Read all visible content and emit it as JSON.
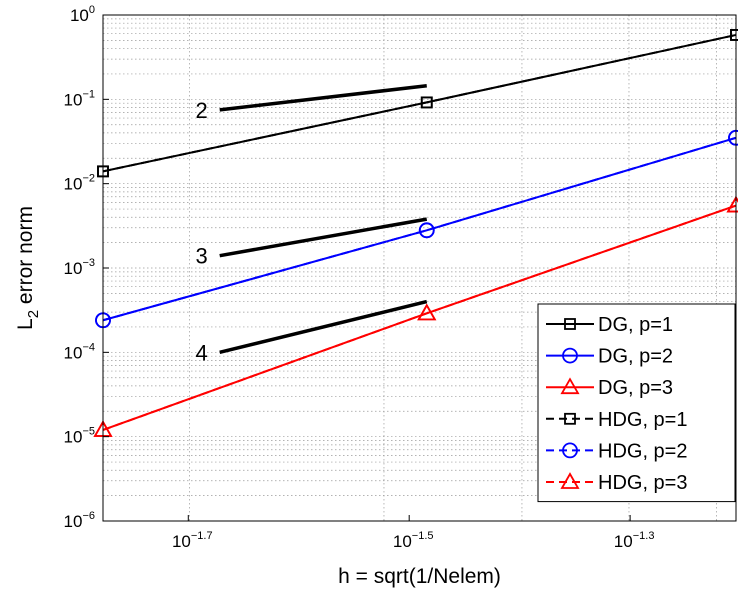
{
  "chart_data": {
    "type": "line",
    "xscale": "log",
    "yscale": "log",
    "xlim": [
      0.0167,
      0.0625
    ],
    "ylim": [
      1e-06,
      1
    ],
    "xlabel": "h = sqrt(1/Nelem)",
    "ylabel_main": "L",
    "ylabel_sub": "2",
    "ylabel_rest": " error norm",
    "grid": true,
    "legend_position": "lower-right",
    "xticks": [
      {
        "value": 0.01995,
        "base": "10",
        "exp": "−1.7"
      },
      {
        "value": 0.03162,
        "base": "10",
        "exp": "−1.5"
      },
      {
        "value": 0.05012,
        "base": "10",
        "exp": "−1.3"
      }
    ],
    "yticks": [
      {
        "value": 1e-06,
        "base": "10",
        "exp": "−6"
      },
      {
        "value": 1e-05,
        "base": "10",
        "exp": "−5"
      },
      {
        "value": 0.0001,
        "base": "10",
        "exp": "−4"
      },
      {
        "value": 0.001,
        "base": "10",
        "exp": "−3"
      },
      {
        "value": 0.01,
        "base": "10",
        "exp": "−2"
      },
      {
        "value": 0.1,
        "base": "10",
        "exp": "−1"
      },
      {
        "value": 1,
        "base": "10",
        "exp": "0"
      }
    ],
    "series": [
      {
        "name": "DG, p=1",
        "color": "#000000",
        "marker": "square",
        "dash": "solid",
        "x": [
          0.0167,
          0.0328,
          0.0625
        ],
        "y": [
          0.014,
          0.092,
          0.58
        ]
      },
      {
        "name": "DG, p=2",
        "color": "#0000ff",
        "marker": "circle",
        "dash": "solid",
        "x": [
          0.0167,
          0.0328,
          0.0625
        ],
        "y": [
          0.00024,
          0.0028,
          0.035
        ]
      },
      {
        "name": "DG, p=3",
        "color": "#ff0000",
        "marker": "triangle",
        "dash": "solid",
        "x": [
          0.0167,
          0.0328,
          0.0625
        ],
        "y": [
          1.2e-05,
          0.00029,
          0.0055
        ]
      },
      {
        "name": "HDG, p=1",
        "color": "#000000",
        "marker": "square",
        "dash": "dashed",
        "x": [
          0.0167,
          0.0328,
          0.0625
        ],
        "y": [
          0.014,
          0.092,
          0.58
        ]
      },
      {
        "name": "HDG, p=2",
        "color": "#0000ff",
        "marker": "circle",
        "dash": "dashed",
        "x": [
          0.0167,
          0.0328,
          0.0625
        ],
        "y": [
          0.00024,
          0.0028,
          0.035
        ]
      },
      {
        "name": "HDG, p=3",
        "color": "#ff0000",
        "marker": "triangle",
        "dash": "dashed",
        "x": [
          0.0167,
          0.0328,
          0.0625
        ],
        "y": [
          1.2e-05,
          0.00029,
          0.0055
        ]
      }
    ],
    "slope_annotations": [
      {
        "label": "2",
        "x": [
          0.0213,
          0.0328
        ],
        "y": [
          0.075,
          0.145
        ]
      },
      {
        "label": "3",
        "x": [
          0.0213,
          0.0328
        ],
        "y": [
          0.0014,
          0.0038
        ]
      },
      {
        "label": "4",
        "x": [
          0.0213,
          0.0328
        ],
        "y": [
          0.0001,
          0.0004
        ]
      }
    ]
  }
}
